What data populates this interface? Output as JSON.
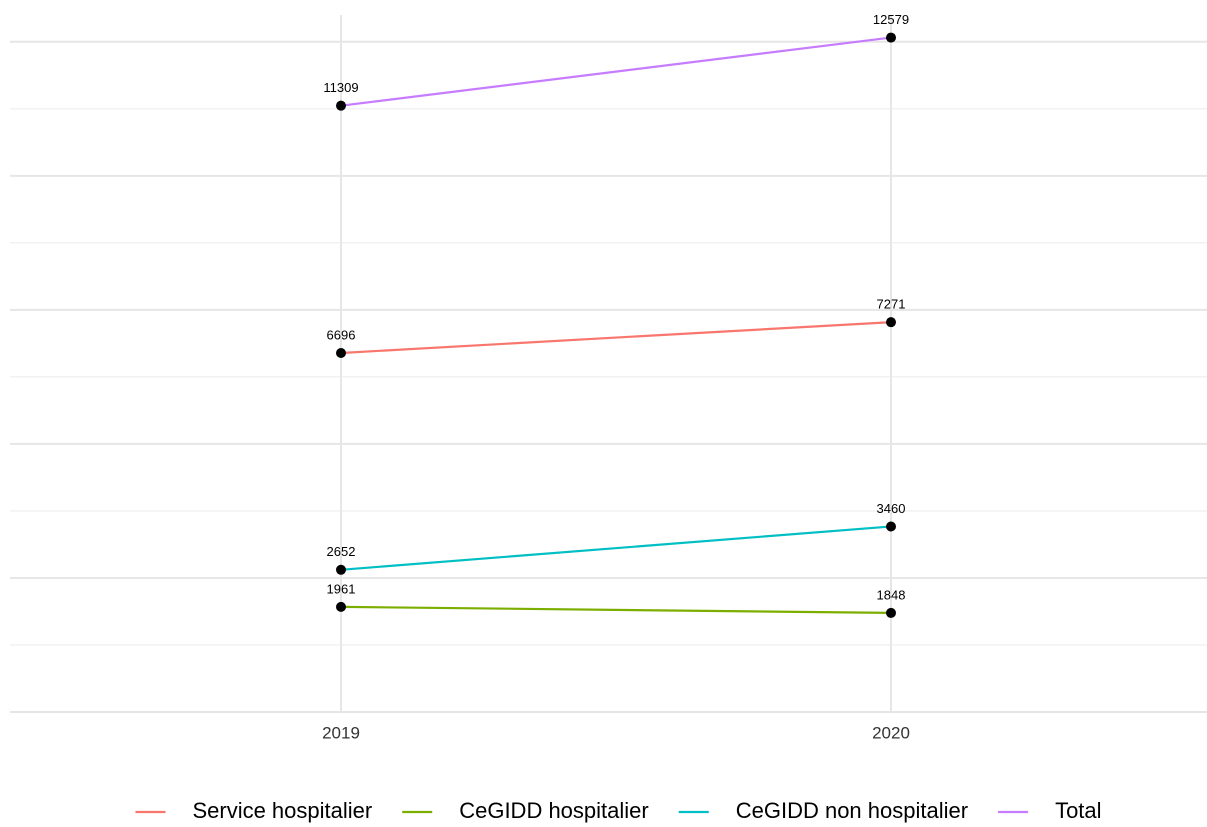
{
  "chart_data": {
    "type": "line",
    "categories": [
      "2019",
      "2020"
    ],
    "series": [
      {
        "name": "Service hospitalier",
        "color": "#F8766D",
        "values": [
          6696,
          7271
        ]
      },
      {
        "name": "CeGIDD hospitalier",
        "color": "#7CAE00",
        "values": [
          1961,
          1848
        ]
      },
      {
        "name": "CeGIDD non hospitalier",
        "color": "#00BFC4",
        "values": [
          2652,
          3460
        ]
      },
      {
        "name": "Total",
        "color": "#C77CFF",
        "values": [
          11309,
          12579
        ]
      }
    ],
    "point_color": "#000000",
    "ylim": [
      0,
      13000
    ],
    "yticks": [
      0,
      2500,
      5000,
      7500,
      10000,
      12500
    ],
    "yminor_ticks": [
      1250,
      3750,
      6250,
      8750,
      11250
    ],
    "grid": true,
    "legend": "bottom"
  }
}
